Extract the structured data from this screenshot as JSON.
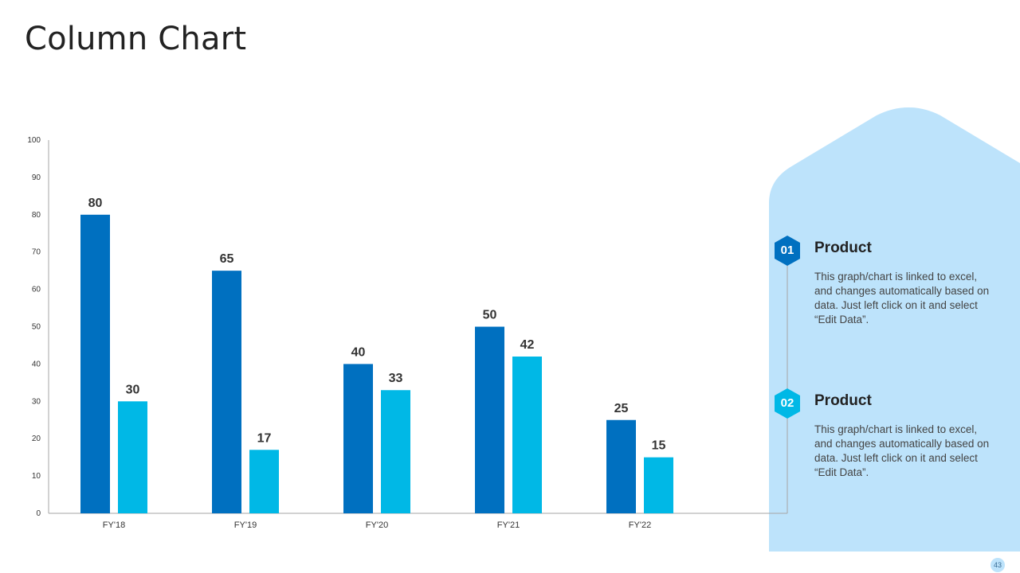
{
  "title": "Column Chart",
  "colors": {
    "series_dark": "#0070c0",
    "series_light": "#00b8e6",
    "panel": "#bde3fb",
    "hex_1": "#0070c0",
    "hex_2": "#00b8e6"
  },
  "legend": [
    {
      "number": "01",
      "label": "Product",
      "description": "This graph/chart is linked to excel, and changes automatically based on data. Just left click on it and select “Edit Data”."
    },
    {
      "number": "02",
      "label": "Product",
      "description": "This graph/chart is linked to excel, and changes automatically based on data. Just left click on it and select “Edit Data”."
    }
  ],
  "page_number": "43",
  "chart_data": {
    "type": "bar",
    "categories": [
      "FY'18",
      "FY'19",
      "FY'20",
      "FY'21",
      "FY'22"
    ],
    "series": [
      {
        "values": [
          80,
          65,
          40,
          50,
          25
        ],
        "color": "#0070c0"
      },
      {
        "values": [
          30,
          17,
          33,
          42,
          15
        ],
        "color": "#00b8e6"
      }
    ],
    "ylim": [
      0,
      100
    ],
    "yticks": [
      0,
      10,
      20,
      30,
      40,
      50,
      60,
      70,
      80,
      90,
      100
    ],
    "grid": false,
    "legend_position": "right"
  }
}
